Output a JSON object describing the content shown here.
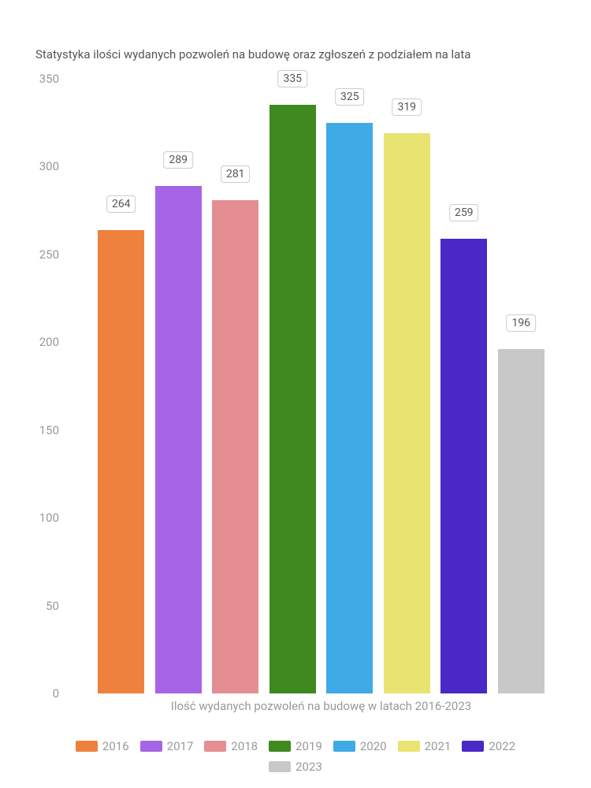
{
  "chart": {
    "type": "bar",
    "title": "Statystyka ilości wydanych pozwoleń na budowę oraz zgłoszeń z podziałem na lata",
    "title_fontsize": 15,
    "title_color": "#555555",
    "x_label": "Ilość wydanych pozwoleń na budowę w latach 2016-2023",
    "label_fontsize": 15,
    "label_color": "#999999",
    "ylim": [
      0,
      350
    ],
    "ytick_step": 50,
    "yticks": [
      "0",
      "50",
      "100",
      "150",
      "200",
      "250",
      "300",
      "350"
    ],
    "background_color": "#ffffff",
    "tick_color": "#999999",
    "tick_fontsize": 15,
    "value_label_bg": "#ffffff",
    "value_label_border": "#cccccc",
    "value_label_color": "#555555",
    "value_label_fontsize": 14,
    "bar_width_pct": 9.5,
    "bar_gap_pct": 2.1,
    "series": [
      {
        "year": "2016",
        "value": 264,
        "color": "#ee813d"
      },
      {
        "year": "2017",
        "value": 289,
        "color": "#a664e6"
      },
      {
        "year": "2018",
        "value": 281,
        "color": "#e48e93"
      },
      {
        "year": "2019",
        "value": 335,
        "color": "#3f8a1f"
      },
      {
        "year": "2020",
        "value": 325,
        "color": "#3eaae6"
      },
      {
        "year": "2021",
        "value": 319,
        "color": "#e9e471"
      },
      {
        "year": "2022",
        "value": 259,
        "color": "#4a27c7"
      },
      {
        "year": "2023",
        "value": 196,
        "color": "#c8c8c8"
      }
    ]
  }
}
